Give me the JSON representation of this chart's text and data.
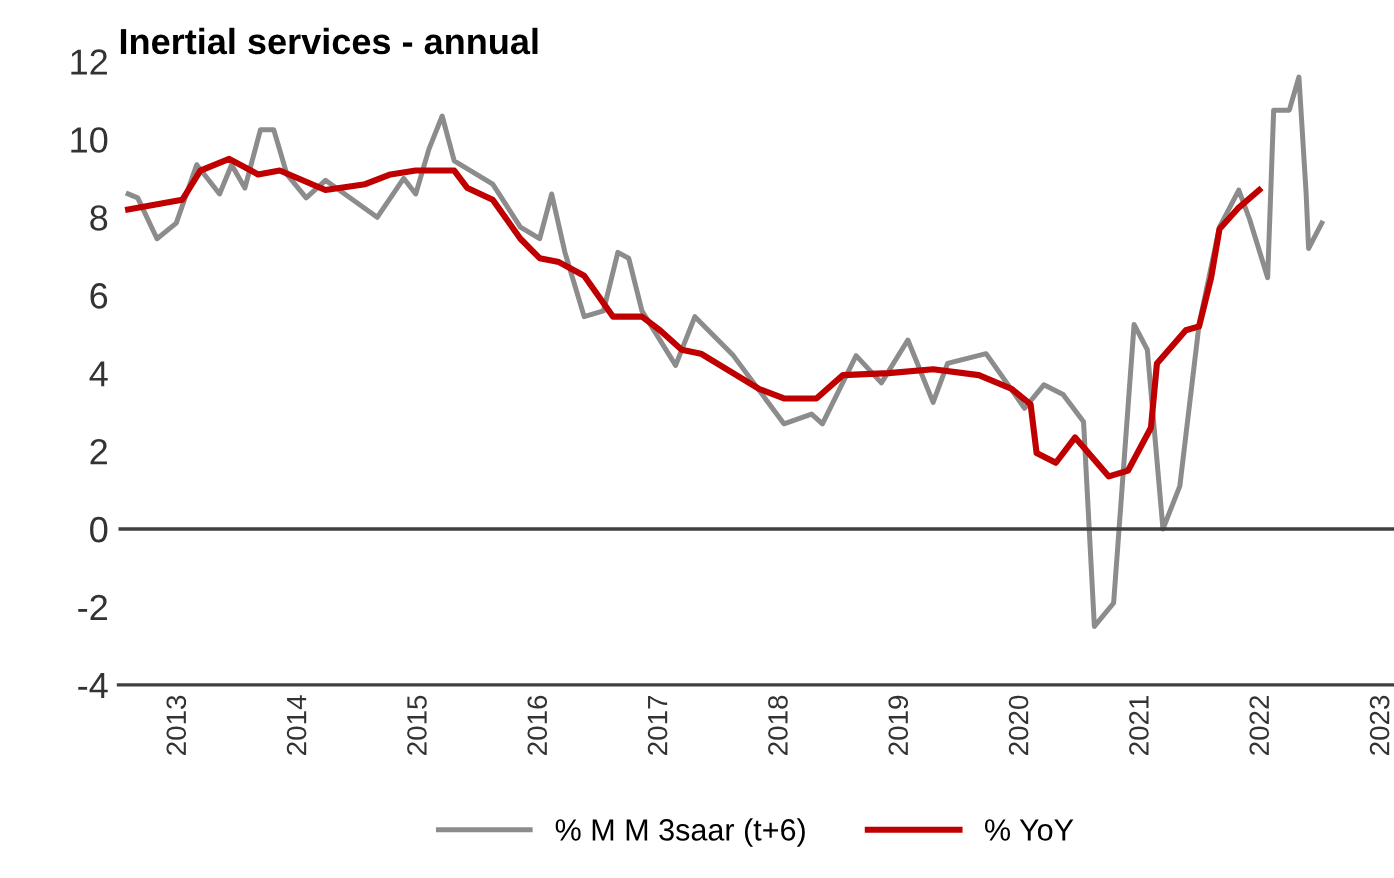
{
  "chart_data": {
    "type": "line",
    "title": "Inertial services - annual",
    "xlim": [
      2012.5,
      2023.1
    ],
    "xticks": [
      2013,
      2014,
      2015,
      2016,
      2017,
      2018,
      2019,
      2020,
      2021,
      2022,
      2023
    ],
    "ylim": [
      -4,
      12
    ],
    "yticks": [
      -4,
      -2,
      0,
      2,
      4,
      6,
      8,
      10,
      12
    ],
    "grid": false,
    "legend": "bottom",
    "marker": "none",
    "line_style": "solid",
    "ref_lines": [
      {
        "axis": "y",
        "value": 0,
        "color": "#404040"
      }
    ],
    "series": [
      {
        "name": "% M M 3saar (t+6)",
        "color": "#8c8c8c",
        "x": [
          2012.58,
          2012.66,
          2012.82,
          2012.98,
          2013.15,
          2013.34,
          2013.44,
          2013.55,
          2013.68,
          2013.79,
          2013.9,
          2014.06,
          2014.22,
          2014.65,
          2014.87,
          2014.97,
          2015.08,
          2015.19,
          2015.29,
          2015.61,
          2015.84,
          2016.0,
          2016.1,
          2016.21,
          2016.37,
          2016.53,
          2016.65,
          2016.74,
          2016.85,
          2017.13,
          2017.29,
          2017.61,
          2018.03,
          2018.26,
          2018.35,
          2018.63,
          2018.84,
          2019.06,
          2019.27,
          2019.39,
          2019.71,
          2020.03,
          2020.19,
          2020.35,
          2020.52,
          2020.61,
          2020.77,
          2020.94,
          2021.05,
          2021.18,
          2021.32,
          2021.48,
          2021.65,
          2021.81,
          2021.9,
          2022.05,
          2022.1,
          2022.23,
          2022.31,
          2022.37,
          2022.39,
          2022.5
        ],
        "values": [
          8.6,
          8.5,
          7.45,
          7.85,
          9.35,
          8.6,
          9.35,
          8.75,
          10.25,
          10.25,
          9.1,
          8.5,
          8.95,
          8.0,
          9.0,
          8.6,
          9.75,
          10.6,
          9.45,
          8.85,
          7.75,
          7.45,
          8.6,
          7.1,
          5.45,
          5.6,
          7.1,
          6.95,
          5.6,
          4.2,
          5.45,
          4.45,
          2.7,
          2.95,
          2.7,
          4.45,
          3.75,
          4.85,
          3.25,
          4.25,
          4.5,
          3.1,
          3.7,
          3.45,
          2.75,
          -2.5,
          -1.9,
          5.25,
          4.6,
          0.0,
          1.1,
          5.25,
          7.75,
          8.7,
          7.95,
          6.45,
          10.75,
          10.75,
          11.6,
          8.6,
          7.2,
          7.85
        ]
      },
      {
        "name": "% YoY",
        "color": "#c00000",
        "x": [
          2012.58,
          2013.03,
          2013.18,
          2013.42,
          2013.66,
          2013.84,
          2014.22,
          2014.55,
          2014.76,
          2014.97,
          2015.29,
          2015.4,
          2015.61,
          2015.84,
          2016.0,
          2016.16,
          2016.37,
          2016.61,
          2016.85,
          2017.0,
          2017.18,
          2017.34,
          2017.82,
          2018.03,
          2018.3,
          2018.52,
          2018.9,
          2019.27,
          2019.65,
          2019.92,
          2020.08,
          2020.13,
          2020.29,
          2020.45,
          2020.73,
          2020.89,
          2021.08,
          2021.13,
          2021.37,
          2021.48,
          2021.58,
          2021.65,
          2021.81,
          2021.98
        ],
        "values": [
          8.2,
          8.45,
          9.2,
          9.5,
          9.1,
          9.2,
          8.7,
          8.85,
          9.1,
          9.2,
          9.2,
          8.75,
          8.45,
          7.45,
          6.95,
          6.85,
          6.5,
          5.45,
          5.45,
          5.1,
          4.6,
          4.5,
          3.6,
          3.35,
          3.35,
          3.95,
          4.0,
          4.1,
          3.95,
          3.6,
          3.2,
          1.95,
          1.7,
          2.35,
          1.35,
          1.5,
          2.6,
          4.25,
          5.1,
          5.2,
          6.45,
          7.7,
          8.25,
          8.7
        ]
      }
    ]
  }
}
